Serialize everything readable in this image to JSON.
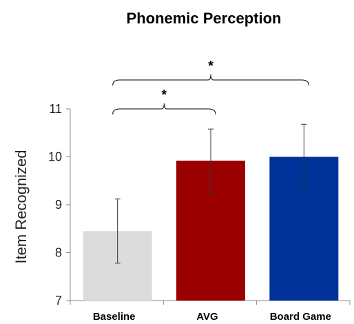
{
  "chart_data": {
    "type": "bar",
    "title": "Phonemic Perception",
    "ylabel": "Item Recognized",
    "xlabel": "",
    "categories": [
      "Baseline",
      "AVG",
      "Board Game"
    ],
    "values": [
      8.45,
      9.92,
      10.0
    ],
    "error_low": [
      7.78,
      9.25,
      9.35
    ],
    "error_high": [
      9.12,
      10.58,
      10.68
    ],
    "ylim": [
      7,
      11
    ],
    "yticks": [
      7,
      8,
      9,
      10,
      11
    ],
    "colors": [
      "#dcdcdc",
      "#9b0000",
      "#003399"
    ],
    "grid": false,
    "legend": "none",
    "significance": [
      {
        "from": 0,
        "to": 1,
        "label": "*"
      },
      {
        "from": 0,
        "to": 2,
        "label": "*"
      }
    ]
  }
}
